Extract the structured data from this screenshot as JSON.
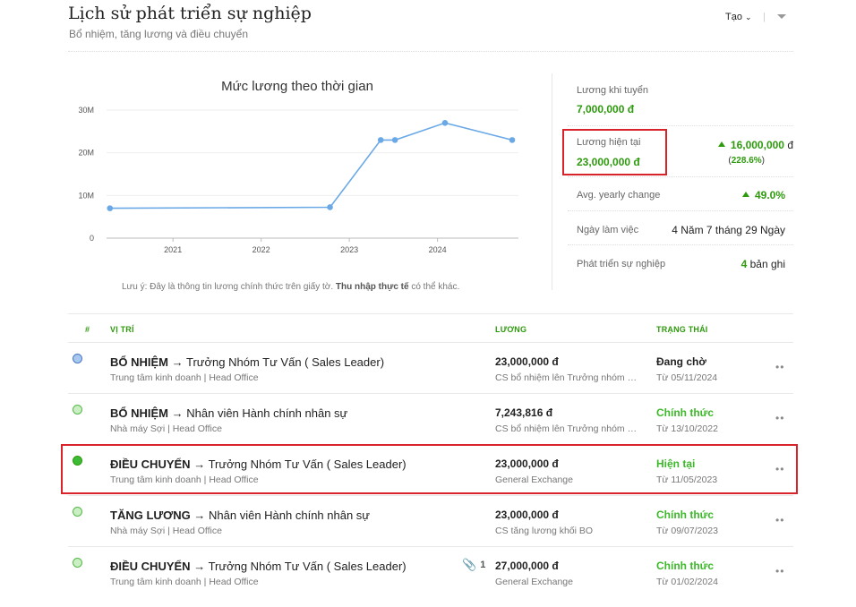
{
  "header": {
    "title": "Lịch sử phát triển sự nghiệp",
    "subtitle": "Bổ nhiệm, tăng lương và điều chuyển",
    "create_label": "Tạo",
    "separator": "|"
  },
  "chart_data": {
    "type": "line",
    "title": "Mức lương theo thời gian",
    "x_ticks": [
      "2021",
      "2022",
      "2023",
      "2024"
    ],
    "y_ticks": [
      "0",
      "10M",
      "20M",
      "30M"
    ],
    "ylim": [
      0,
      30000000
    ],
    "xlim": [
      "2020-04-01",
      "2024-12-01"
    ],
    "grid": true,
    "series": [
      {
        "points": [
          {
            "x": "2020-04-15",
            "y": 7000000
          },
          {
            "x": "2022-10-13",
            "y": 7243816
          },
          {
            "x": "2023-05-11",
            "y": 23000000
          },
          {
            "x": "2023-07-09",
            "y": 23000000
          },
          {
            "x": "2024-02-01",
            "y": 27000000
          },
          {
            "x": "2024-11-05",
            "y": 23000000
          }
        ]
      }
    ],
    "color": "#6aa9e6"
  },
  "chart_note": {
    "prefix": "Lưu ý: Đây là thông tin lương chính thức trên giấy tờ.",
    "bold": "Thu nhập thực tế",
    "suffix": "có thể khác."
  },
  "stats": {
    "hire_salary_label": "Lương khi tuyển",
    "hire_salary_value": "7,000,000 đ",
    "current_salary_label": "Lương hiện tại",
    "current_salary_value": "23,000,000 đ",
    "current_increase": "16,000,000",
    "current_currency": "đ",
    "current_percent": "228.6%",
    "avg_label": "Avg. yearly change",
    "avg_value": "49.0%",
    "workdays_label": "Ngày làm việc",
    "workdays_value": "4 Năm 7 tháng 29 Ngày",
    "career_label": "Phát triển sự nghiệp",
    "career_count": "4",
    "career_unit": "bản ghi"
  },
  "table": {
    "headers": {
      "index": "#",
      "position": "Vị trí",
      "salary": "Lương",
      "status": "Trạng thái"
    },
    "rows": [
      {
        "type": "BỔ NHIỆM",
        "arrow": "→",
        "position": "Trưởng Nhóm Tư Vấn ( Sales Leader)",
        "unit": "Trung tâm kinh doanh | Head Office",
        "salary": "23,000,000 đ",
        "note": "CS bổ nhiệm lên Trưởng nhóm Kinh doanh",
        "status": "Đang chờ",
        "date": "Từ 05/11/2024",
        "dot": "#a8c8f0"
      },
      {
        "type": "BỔ NHIỆM",
        "arrow": "→",
        "position": "Nhân viên Hành chính nhân sự",
        "unit": "Nhà máy Sợi | Head Office",
        "salary": "7,243,816 đ",
        "note": "CS bổ nhiệm lên Trưởng nhóm Kinh doanh",
        "status": "Chính thức",
        "date": "Từ 13/10/2022",
        "dot": "#c9efc3"
      },
      {
        "type": "ĐIỀU CHUYỂN",
        "arrow": "→",
        "position": "Trưởng Nhóm Tư Vấn ( Sales Leader)",
        "unit": "Trung tâm kinh doanh | Head Office",
        "salary": "23,000,000 đ",
        "note": "General Exchange",
        "status": "Hiện tại",
        "date": "Từ 11/05/2023",
        "dot": "#3dbb35"
      },
      {
        "type": "TĂNG LƯƠNG",
        "arrow": "→",
        "position": "Nhân viên Hành chính nhân sự",
        "unit": "Nhà máy Sợi | Head Office",
        "salary": "23,000,000 đ",
        "note": "CS tăng lương khối BO",
        "status": "Chính thức",
        "date": "Từ 09/07/2023",
        "dot": "#c9efc3"
      },
      {
        "type": "ĐIỀU CHUYỂN",
        "arrow": "→",
        "position": "Trưởng Nhóm Tư Vấn ( Sales Leader)",
        "unit": "Trung tâm kinh doanh | Head Office",
        "salary": "27,000,000 đ",
        "note": "General Exchange",
        "status": "Chính thức",
        "date": "Từ 01/02/2024",
        "dot": "#c9efc3",
        "attachments": "1"
      }
    ],
    "more_label": "••"
  },
  "colors": {
    "accent": "#2e9a0e",
    "highlight": "#d8232a",
    "line": "#6aa9e6"
  }
}
